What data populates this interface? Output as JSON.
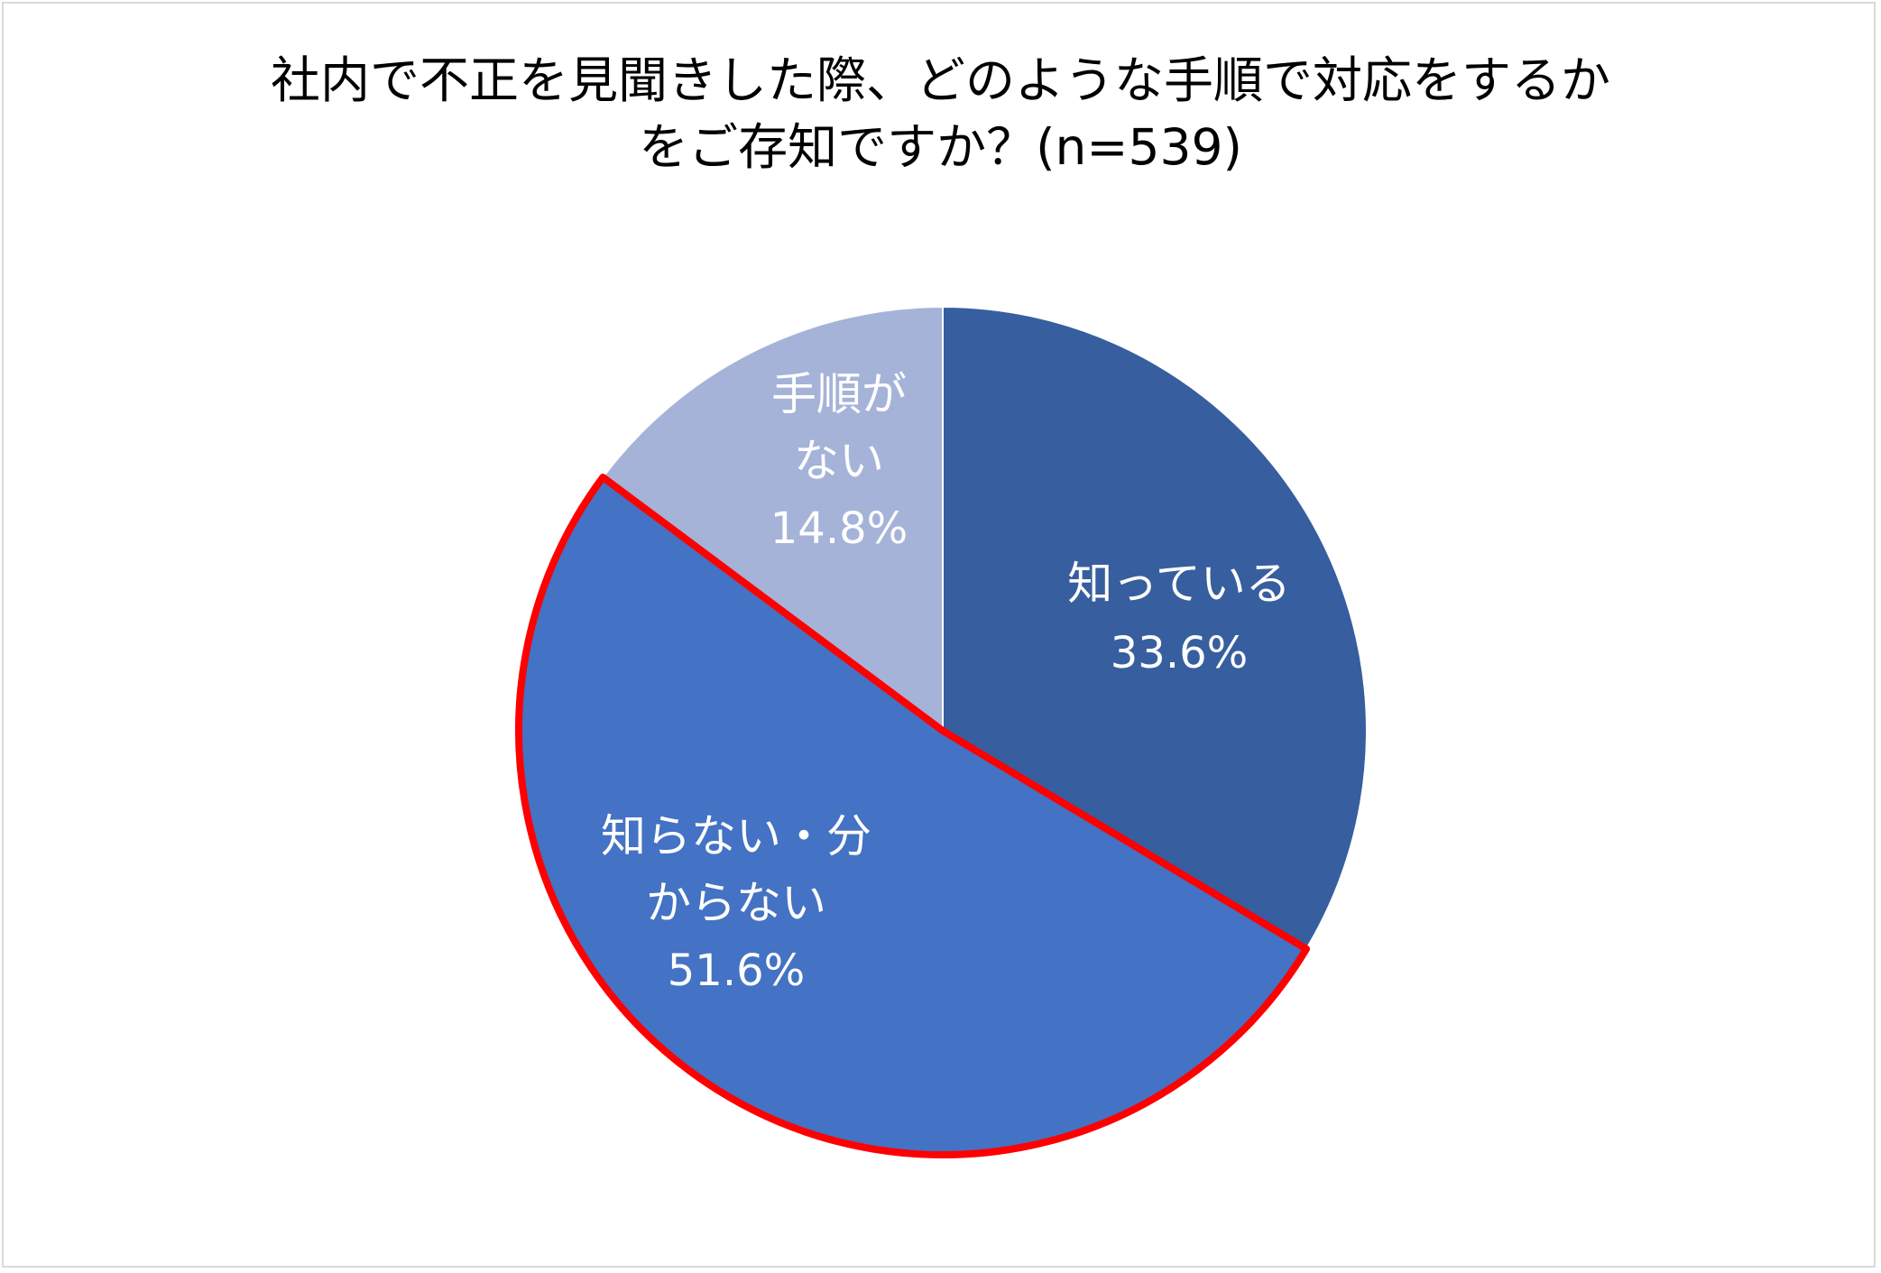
{
  "chart_data": {
    "type": "pie",
    "title": "社内で不正を見聞きした際、どのような手順で対応をするか をご存知ですか？(n=539)",
    "title_lines": [
      "社内で不正を見聞きした際、どのような手順で対応をするか",
      "をご存知ですか？(n=539)"
    ],
    "start": "12 o'clock",
    "direction": "clockwise",
    "highlighted_slice": "知らない・分からない",
    "highlight_color": "#ff0000",
    "slices": [
      {
        "label": "知っている",
        "label_lines": [
          "知っている"
        ],
        "value": 33.6,
        "value_text": "33.6%",
        "color": "#375e9f"
      },
      {
        "label": "知らない・分からない",
        "label_lines": [
          "知らない・分",
          "からない"
        ],
        "value": 51.6,
        "value_text": "51.6%",
        "color": "#4472c4"
      },
      {
        "label": "手順がない",
        "label_lines": [
          "手順が",
          "ない"
        ],
        "value": 14.8,
        "value_text": "14.8%",
        "color": "#a5b3d9"
      }
    ]
  }
}
